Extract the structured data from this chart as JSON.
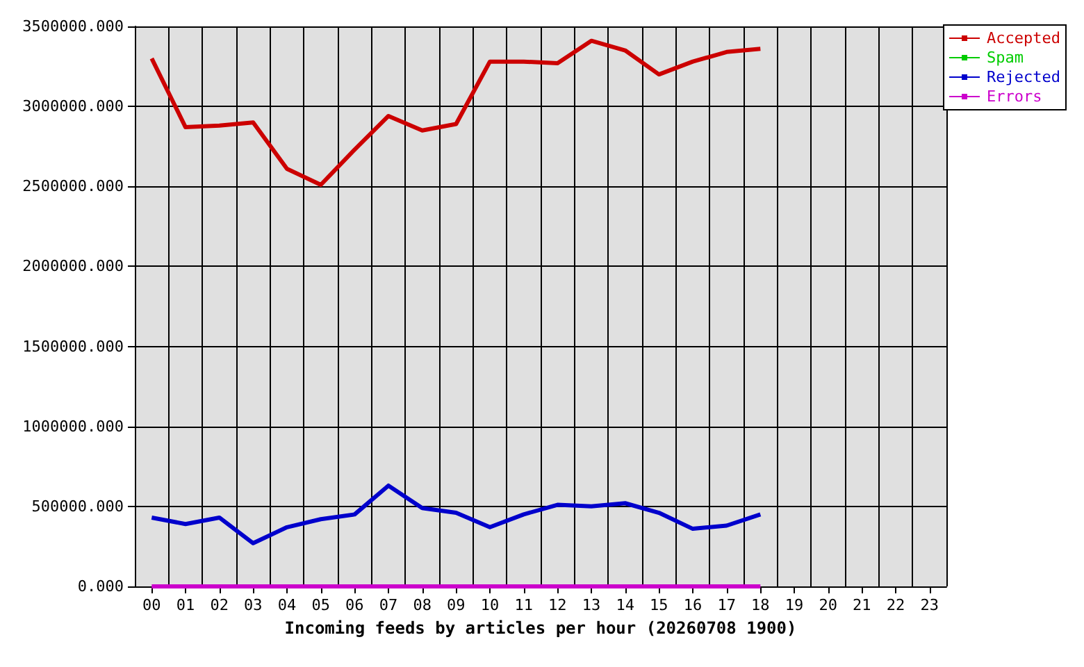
{
  "chart_data": {
    "type": "line",
    "xlabel": "Incoming feeds by articles per hour (20260708 1900)",
    "categories": [
      "00",
      "01",
      "02",
      "03",
      "04",
      "05",
      "06",
      "07",
      "08",
      "09",
      "10",
      "11",
      "12",
      "13",
      "14",
      "15",
      "16",
      "17",
      "18",
      "19",
      "20",
      "21",
      "22",
      "23"
    ],
    "series": [
      {
        "name": "Accepted",
        "color": "#cc0000",
        "values": [
          3300000,
          2870000,
          2880000,
          2900000,
          2610000,
          2510000,
          2730000,
          2940000,
          2850000,
          2890000,
          3280000,
          3280000,
          3270000,
          3410000,
          3350000,
          3200000,
          3280000,
          3340000,
          3360000,
          null,
          null,
          null,
          null,
          null
        ]
      },
      {
        "name": "Spam",
        "color": "#00cc00",
        "values": [
          null,
          null,
          null,
          null,
          null,
          null,
          null,
          null,
          null,
          null,
          null,
          null,
          null,
          null,
          null,
          null,
          null,
          null,
          null,
          null,
          null,
          null,
          null,
          null
        ]
      },
      {
        "name": "Rejected",
        "color": "#0000cc",
        "values": [
          430000,
          390000,
          430000,
          270000,
          370000,
          420000,
          450000,
          630000,
          490000,
          460000,
          370000,
          450000,
          510000,
          500000,
          520000,
          460000,
          360000,
          380000,
          450000,
          null,
          null,
          null,
          null,
          null
        ]
      },
      {
        "name": "Errors",
        "color": "#cc00cc",
        "values": [
          0,
          0,
          0,
          0,
          0,
          0,
          0,
          0,
          0,
          0,
          0,
          0,
          0,
          0,
          0,
          0,
          0,
          0,
          0,
          null,
          null,
          null,
          null,
          null
        ]
      }
    ],
    "ylim": [
      0,
      3500000
    ],
    "yticks": [
      {
        "value": 0,
        "label": "0.000"
      },
      {
        "value": 500000,
        "label": "500000.000"
      },
      {
        "value": 1000000,
        "label": "1000000.000"
      },
      {
        "value": 1500000,
        "label": "1500000.000"
      },
      {
        "value": 2000000,
        "label": "2000000.000"
      },
      {
        "value": 2500000,
        "label": "2500000.000"
      },
      {
        "value": 3000000,
        "label": "3000000.000"
      },
      {
        "value": 3500000,
        "label": "3500000.000"
      }
    ],
    "grid": true,
    "legend": "top right",
    "marker": "none",
    "line_style": "solid"
  }
}
